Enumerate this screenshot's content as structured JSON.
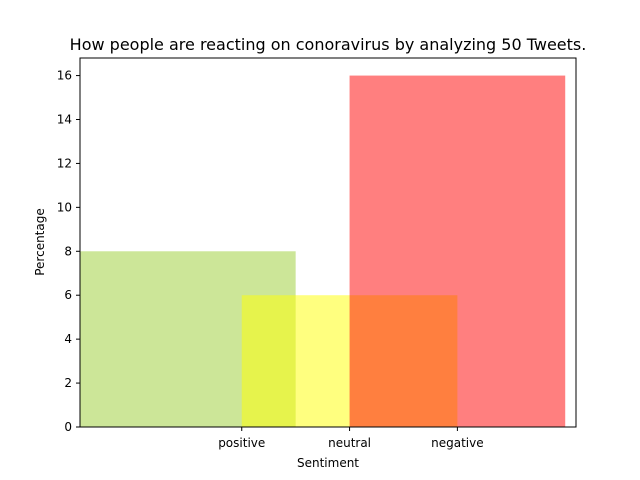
{
  "chart_data": {
    "type": "bar",
    "title": "How people are reacting on conoravirus by analyzing 50 Tweets.",
    "xlabel": "Sentiment",
    "ylabel": "Percentage",
    "categories": [
      "positive",
      "neutral",
      "negative"
    ],
    "xlim": [
      -1.5,
      3.1
    ],
    "ylim": [
      0,
      16.8
    ],
    "yticks": [
      0,
      2,
      4,
      6,
      8,
      10,
      12,
      14,
      16
    ],
    "bar_width": 2,
    "grid": false,
    "series": [
      {
        "color": "#9acd32",
        "alpha": 0.5,
        "values": [
          {
            "x": -0.5,
            "y": 8
          }
        ]
      },
      {
        "color": "#ffff00",
        "alpha": 0.5,
        "values": [
          {
            "x": 1,
            "y": 6
          }
        ]
      },
      {
        "color": "#ff0000",
        "alpha": 0.5,
        "values": [
          {
            "x": 2.0,
            "y": 16
          }
        ]
      }
    ]
  }
}
